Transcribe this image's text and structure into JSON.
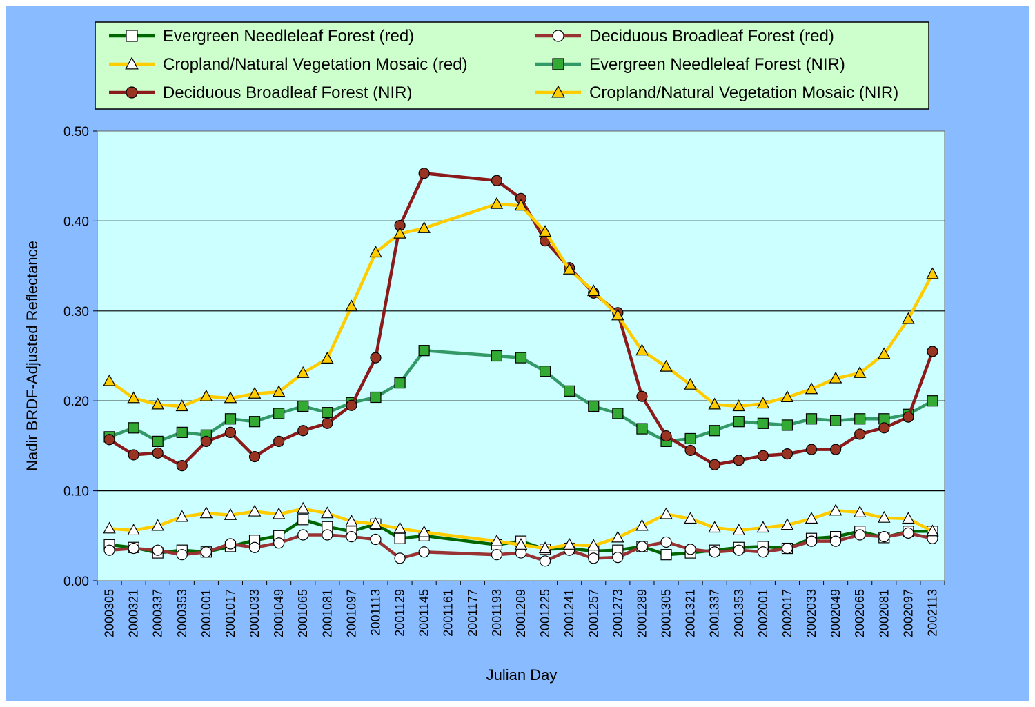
{
  "chart_data": {
    "type": "line",
    "title": "",
    "xlabel": "Julian Day",
    "ylabel": "Nadir BRDF-Adjusted Reflectance",
    "ylim": [
      0.0,
      0.5
    ],
    "yticks": [
      "0.00",
      "0.10",
      "0.20",
      "0.30",
      "0.40",
      "0.50"
    ],
    "grid": "horizontal major gridlines",
    "legend_position": "top",
    "x": [
      "2000305",
      "2000321",
      "2000337",
      "2000353",
      "2001001",
      "2001017",
      "2001033",
      "2001049",
      "2001065",
      "2001081",
      "2001097",
      "2001113",
      "2001129",
      "2001145",
      "2001161",
      "2001177",
      "2001193",
      "2001209",
      "2001225",
      "2001241",
      "2001257",
      "2001273",
      "2001289",
      "2001305",
      "2001321",
      "2001337",
      "2001353",
      "2002001",
      "2002017",
      "2002033",
      "2002049",
      "2002065",
      "2002081",
      "2002097",
      "2002113"
    ],
    "series": [
      {
        "name": "Evergreen Needleleaf Forest (red)",
        "line_color": "#006600",
        "marker": "square",
        "marker_fill": "#ffffff",
        "values": [
          0.04,
          0.037,
          0.031,
          0.034,
          0.032,
          0.038,
          0.045,
          0.05,
          0.068,
          0.06,
          0.055,
          0.063,
          0.047,
          0.05,
          null,
          null,
          0.04,
          0.044,
          0.035,
          0.036,
          0.033,
          0.034,
          0.038,
          0.029,
          0.031,
          0.034,
          0.037,
          0.038,
          0.036,
          0.047,
          0.049,
          0.055,
          0.048,
          0.055,
          0.055
        ]
      },
      {
        "name": "Deciduous Broadleaf Forest (red)",
        "line_color": "#993333",
        "marker": "circle",
        "marker_fill": "#ffffff",
        "values": [
          0.034,
          0.036,
          0.034,
          0.029,
          0.032,
          0.041,
          0.037,
          0.042,
          0.051,
          0.051,
          0.049,
          0.046,
          0.025,
          0.032,
          null,
          null,
          0.029,
          0.031,
          0.022,
          0.034,
          0.025,
          0.026,
          0.038,
          0.043,
          0.035,
          0.032,
          0.034,
          0.032,
          0.036,
          0.044,
          0.044,
          0.051,
          0.049,
          0.053,
          0.047
        ]
      },
      {
        "name": "Cropland/Natural Vegetation Mosaic (red)",
        "line_color": "#ffcc00",
        "marker": "triangle",
        "marker_fill": "#ffffff",
        "values": [
          0.058,
          0.056,
          0.061,
          0.071,
          0.075,
          0.073,
          0.077,
          0.074,
          0.08,
          0.075,
          0.066,
          0.063,
          0.058,
          0.054,
          null,
          null,
          0.044,
          0.04,
          0.036,
          0.04,
          0.039,
          0.048,
          0.061,
          0.074,
          0.069,
          0.059,
          0.056,
          0.059,
          0.062,
          0.069,
          0.078,
          0.076,
          0.07,
          0.069,
          0.055
        ]
      },
      {
        "name": "Evergreen Needleleaf Forest (NIR)",
        "line_color": "#339966",
        "marker": "square",
        "marker_fill": "#33aa33",
        "values": [
          0.16,
          0.17,
          0.155,
          0.165,
          0.162,
          0.18,
          0.177,
          0.186,
          0.194,
          0.187,
          0.198,
          0.204,
          0.22,
          0.256,
          null,
          null,
          0.25,
          0.248,
          0.233,
          0.211,
          0.194,
          0.186,
          0.169,
          0.155,
          0.158,
          0.167,
          0.177,
          0.175,
          0.173,
          0.18,
          0.178,
          0.18,
          0.18,
          0.185,
          0.2
        ]
      },
      {
        "name": "Deciduous Broadleaf Forest (NIR)",
        "line_color": "#8b1a1a",
        "marker": "circle",
        "marker_fill": "#993322",
        "values": [
          0.157,
          0.14,
          0.142,
          0.128,
          0.155,
          0.165,
          0.138,
          0.155,
          0.167,
          0.175,
          0.195,
          0.248,
          0.395,
          0.453,
          null,
          null,
          0.445,
          0.425,
          0.378,
          0.348,
          0.32,
          0.298,
          0.205,
          0.161,
          0.145,
          0.129,
          0.134,
          0.139,
          0.141,
          0.146,
          0.146,
          0.163,
          0.17,
          0.182,
          0.255
        ]
      },
      {
        "name": "Cropland/Natural Vegetation Mosaic (NIR)",
        "line_color": "#ffcc00",
        "marker": "triangle",
        "marker_fill": "#ffcc00",
        "values": [
          0.222,
          0.203,
          0.196,
          0.194,
          0.205,
          0.203,
          0.208,
          0.21,
          0.231,
          0.247,
          0.305,
          0.365,
          0.386,
          0.392,
          null,
          null,
          0.419,
          0.417,
          0.388,
          0.346,
          0.322,
          0.295,
          0.256,
          0.238,
          0.218,
          0.196,
          0.194,
          0.197,
          0.204,
          0.213,
          0.225,
          0.231,
          0.252,
          0.291,
          0.341
        ]
      }
    ]
  }
}
